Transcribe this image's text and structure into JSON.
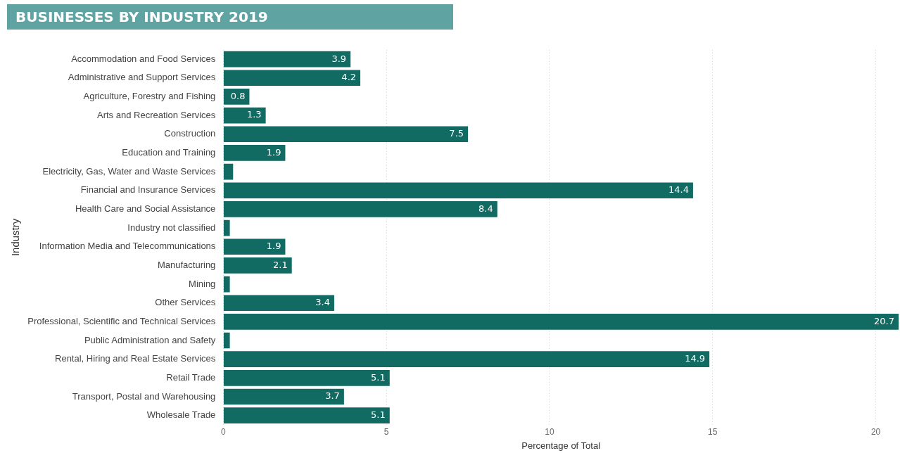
{
  "chart_data": {
    "type": "bar",
    "orientation": "horizontal",
    "title": "BUSINESSES BY INDUSTRY 2019",
    "xlabel": "Percentage of Total",
    "ylabel": "Industry",
    "categories": [
      "Accommodation and Food Services",
      "Administrative and Support Services",
      "Agriculture, Forestry and Fishing",
      "Arts and Recreation Services",
      "Construction",
      "Education and Training",
      "Electricity, Gas, Water and Waste Services",
      "Financial and Insurance Services",
      "Health Care and Social Assistance",
      "Industry not classified",
      "Information Media and Telecommunications",
      "Manufacturing",
      "Mining",
      "Other Services",
      "Professional, Scientific and Technical Services",
      "Public Administration and Safety",
      "Rental, Hiring and Real Estate Services",
      "Retail Trade",
      "Transport, Postal and Warehousing",
      "Wholesale Trade"
    ],
    "values": [
      3.9,
      4.2,
      0.8,
      1.3,
      7.5,
      1.9,
      0.3,
      14.4,
      8.4,
      0.2,
      1.9,
      2.1,
      0.2,
      3.4,
      20.7,
      0.2,
      14.9,
      5.1,
      3.7,
      5.1
    ],
    "value_labels": [
      "3.9",
      "4.2",
      "0.8",
      "1.3",
      "7.5",
      "1.9",
      null,
      "14.4",
      "8.4",
      null,
      "1.9",
      "2.1",
      null,
      "3.4",
      "20.7",
      null,
      "14.9",
      "5.1",
      "3.7",
      "5.1"
    ],
    "color": "#116b62",
    "xlim": [
      0,
      20.7
    ],
    "xticks": [
      0,
      5,
      10,
      15,
      20
    ],
    "grid": "x"
  }
}
